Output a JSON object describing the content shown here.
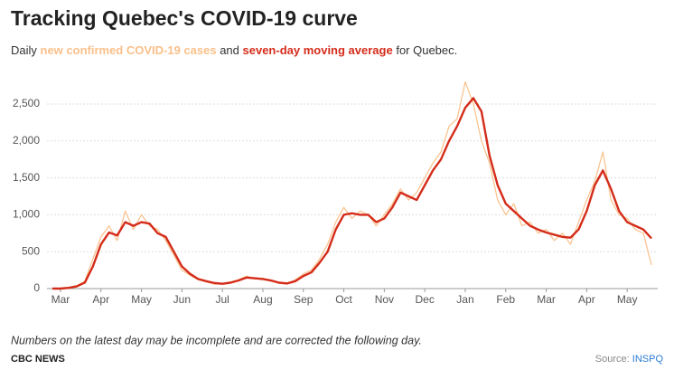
{
  "chart_data": {
    "type": "line",
    "title": "Tracking Quebec's COVID-19 curve",
    "subtitle_parts": [
      "Daily ",
      " and ",
      " for Quebec."
    ],
    "note": "Numbers on the latest day may be incomplete and are corrected the following day.",
    "brand": "CBC NEWS",
    "source_label": "Source:",
    "source_name": "INSPQ",
    "categories": [
      null,
      "Mar",
      null,
      null,
      null,
      null,
      "Apr",
      null,
      null,
      null,
      null,
      "May",
      null,
      null,
      null,
      null,
      "Jun",
      null,
      null,
      null,
      null,
      "Jul",
      null,
      null,
      null,
      null,
      "Aug",
      null,
      null,
      null,
      null,
      "Sep",
      null,
      null,
      null,
      null,
      "Oct",
      null,
      null,
      null,
      null,
      "Nov",
      null,
      null,
      null,
      null,
      "Dec",
      null,
      null,
      null,
      null,
      "Jan",
      null,
      null,
      null,
      null,
      "Feb",
      null,
      null,
      null,
      null,
      "Mar",
      null,
      null,
      null,
      null,
      "Apr",
      null,
      null,
      null,
      null,
      "May",
      null,
      null,
      null
    ],
    "series": [
      {
        "name": "new confirmed COVID-19 cases",
        "color": "#f9c08a",
        "width": 1.2,
        "values": [
          0,
          0,
          15,
          40,
          100,
          400,
          700,
          850,
          650,
          1050,
          800,
          1000,
          850,
          800,
          650,
          450,
          250,
          180,
          120,
          90,
          60,
          70,
          90,
          120,
          170,
          130,
          140,
          100,
          70,
          60,
          120,
          200,
          250,
          400,
          600,
          900,
          1100,
          950,
          1050,
          1000,
          850,
          1000,
          1150,
          1350,
          1200,
          1300,
          1500,
          1700,
          1850,
          2200,
          2300,
          2800,
          2500,
          2000,
          1700,
          1200,
          1000,
          1150,
          850,
          900,
          750,
          800,
          650,
          750,
          600,
          900,
          1200,
          1450,
          1850,
          1200,
          1000,
          950,
          800,
          750,
          320
        ]
      },
      {
        "name": "seven-day moving average",
        "color": "#d42c1a",
        "width": 2.4,
        "values": [
          0,
          0,
          10,
          30,
          80,
          300,
          600,
          760,
          720,
          900,
          850,
          900,
          880,
          750,
          700,
          500,
          300,
          200,
          130,
          100,
          75,
          65,
          80,
          110,
          150,
          140,
          130,
          110,
          80,
          70,
          100,
          170,
          220,
          350,
          500,
          800,
          1000,
          1020,
          1000,
          1000,
          900,
          950,
          1100,
          1300,
          1250,
          1200,
          1400,
          1600,
          1750,
          2000,
          2200,
          2450,
          2580,
          2400,
          1800,
          1400,
          1150,
          1050,
          950,
          850,
          800,
          760,
          730,
          700,
          690,
          800,
          1050,
          1400,
          1600,
          1350,
          1050,
          900,
          850,
          800,
          680
        ]
      }
    ],
    "ylim": [
      0,
      2850
    ],
    "yticks": [
      0,
      500,
      {
        "value": 1000,
        "label": "1,000"
      },
      {
        "value": 1500,
        "label": "1,500"
      },
      {
        "value": 2000,
        "label": "2,000"
      },
      {
        "value": 2500,
        "label": "2,500"
      }
    ],
    "grid": true
  }
}
